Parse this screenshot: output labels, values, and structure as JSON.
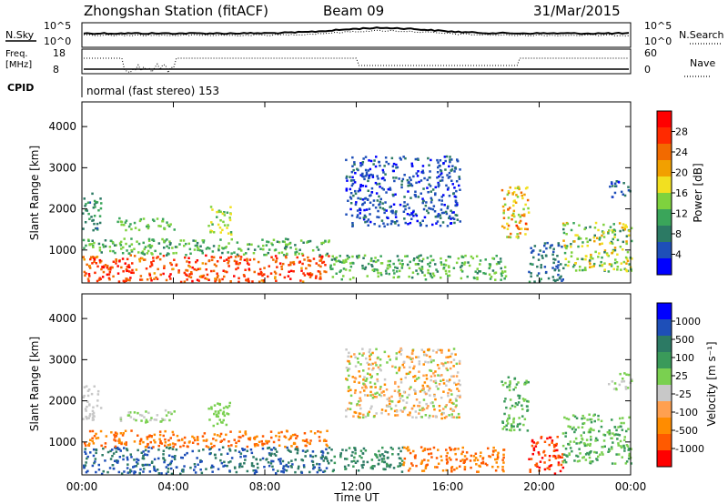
{
  "header": {
    "station": "Zhongshan Station (fitACF)",
    "beam": "Beam 09",
    "date": "31/Mar/2015"
  },
  "top_panels": {
    "nsky_label": "N.Sky",
    "nsearch_label": "N.Search",
    "noise_ticks": [
      "10^5",
      "10^0"
    ],
    "freq_label_1": "Freq.",
    "freq_label_2": "[MHz]",
    "freq_ticks": [
      "18",
      "8"
    ],
    "nave_label": "Nave",
    "nave_ticks": [
      "60",
      "0"
    ],
    "cpid_label": "CPID",
    "cpid_value": "normal (fast stereo) 153"
  },
  "colors": {
    "power": [
      "#0000ff",
      "#1e4fb8",
      "#2c7a64",
      "#3aa55a",
      "#7ed23e",
      "#f2e020",
      "#f2a000",
      "#f26a00",
      "#ff2a00",
      "#ff0000"
    ],
    "velocity": [
      "#ff0000",
      "#ff5a00",
      "#ff8c00",
      "#ffa050",
      "#c8c8c8",
      "#7ad050",
      "#3a9a5a",
      "#2c7a64",
      "#1e4fb8",
      "#0000ff"
    ]
  },
  "chart_data": [
    {
      "type": "heatmap",
      "name": "power",
      "ylabel": "Slant Range [km]",
      "xlabel": "",
      "x_ticks": [
        "00:00",
        "04:00",
        "08:00",
        "12:00",
        "16:00",
        "20:00",
        "00:00"
      ],
      "y_ticks": [
        "1000",
        "2000",
        "3000",
        "4000"
      ],
      "ylim": [
        200,
        4600
      ],
      "xlim": [
        0,
        24
      ],
      "colorbar_label": "Power [dB]",
      "colorbar_ticks": [
        "4",
        "8",
        "12",
        "16",
        "20",
        "24",
        "28"
      ],
      "colorbar_range": [
        0,
        32
      ],
      "regions": [
        {
          "t": [
            0.0,
            10.8
          ],
          "r": [
            250,
            900
          ],
          "v": [
            22,
            30
          ]
        },
        {
          "t": [
            0.0,
            10.8
          ],
          "r": [
            900,
            1300
          ],
          "v": [
            8,
            16
          ]
        },
        {
          "t": [
            0.0,
            0.8
          ],
          "r": [
            1500,
            2400
          ],
          "v": [
            6,
            12
          ]
        },
        {
          "t": [
            1.5,
            4.0
          ],
          "r": [
            1500,
            1800
          ],
          "v": [
            10,
            16
          ]
        },
        {
          "t": [
            5.5,
            6.5
          ],
          "r": [
            1400,
            2100
          ],
          "v": [
            12,
            18
          ]
        },
        {
          "t": [
            10.8,
            18.5
          ],
          "r": [
            300,
            900
          ],
          "v": [
            8,
            16
          ]
        },
        {
          "t": [
            11.5,
            16.5
          ],
          "r": [
            1600,
            3300
          ],
          "v": [
            2,
            8
          ]
        },
        {
          "t": [
            18.3,
            19.5
          ],
          "r": [
            1300,
            2600
          ],
          "v": [
            14,
            26
          ]
        },
        {
          "t": [
            19.5,
            21.0
          ],
          "r": [
            250,
            1200
          ],
          "v": [
            4,
            10
          ]
        },
        {
          "t": [
            21.0,
            24.0
          ],
          "r": [
            500,
            1700
          ],
          "v": [
            8,
            22
          ]
        },
        {
          "t": [
            23.0,
            24.0
          ],
          "r": [
            2300,
            2700
          ],
          "v": [
            2,
            8
          ]
        }
      ]
    },
    {
      "type": "heatmap",
      "name": "velocity",
      "ylabel": "Slant Range [km]",
      "xlabel": "Time UT",
      "x_ticks": [
        "00:00",
        "04:00",
        "08:00",
        "12:00",
        "16:00",
        "20:00",
        "00:00"
      ],
      "y_ticks": [
        "1000",
        "2000",
        "3000",
        "4000"
      ],
      "ylim": [
        200,
        4600
      ],
      "xlim": [
        0,
        24
      ],
      "colorbar_label": "Velocity [m s⁻¹]",
      "colorbar_ticks": [
        "1000",
        "500",
        "100",
        "25",
        "-25",
        "-100",
        "-500",
        "-1000"
      ],
      "regions": [
        {
          "t": [
            0.0,
            10.8
          ],
          "r": [
            250,
            900
          ],
          "v": [
            7,
            9
          ]
        },
        {
          "t": [
            0.0,
            10.8
          ],
          "r": [
            900,
            1300
          ],
          "v": [
            1,
            3
          ]
        },
        {
          "t": [
            0.0,
            0.8
          ],
          "r": [
            1500,
            2400
          ],
          "v": [
            4,
            5
          ]
        },
        {
          "t": [
            1.5,
            4.0
          ],
          "r": [
            1500,
            1800
          ],
          "v": [
            4,
            6
          ]
        },
        {
          "t": [
            5.5,
            6.5
          ],
          "r": [
            1400,
            2100
          ],
          "v": [
            5,
            6
          ]
        },
        {
          "t": [
            10.8,
            14.0
          ],
          "r": [
            300,
            900
          ],
          "v": [
            6,
            8
          ]
        },
        {
          "t": [
            14.0,
            18.5
          ],
          "r": [
            300,
            900
          ],
          "v": [
            1,
            3
          ]
        },
        {
          "t": [
            11.5,
            16.5
          ],
          "r": [
            1600,
            3300
          ],
          "v": [
            2,
            6
          ]
        },
        {
          "t": [
            18.3,
            19.5
          ],
          "r": [
            1300,
            2600
          ],
          "v": [
            5,
            7
          ]
        },
        {
          "t": [
            19.5,
            21.0
          ],
          "r": [
            250,
            1200
          ],
          "v": [
            0,
            2
          ]
        },
        {
          "t": [
            21.0,
            24.0
          ],
          "r": [
            500,
            1700
          ],
          "v": [
            5,
            7
          ]
        },
        {
          "t": [
            23.0,
            24.0
          ],
          "r": [
            2300,
            2700
          ],
          "v": [
            4,
            6
          ]
        }
      ]
    }
  ]
}
